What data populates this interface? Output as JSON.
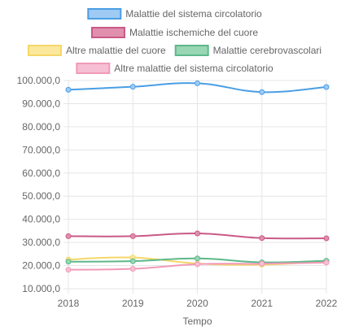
{
  "chart_data": {
    "type": "line",
    "x": [
      "2018",
      "2019",
      "2020",
      "2021",
      "2022"
    ],
    "xlabel": "Tempo",
    "ylabel": "",
    "ylim": [
      10000,
      100000
    ],
    "yticks": [
      "10.000,0",
      "20.000,0",
      "30.000,0",
      "40.000,0",
      "50.000,0",
      "60.000,0",
      "70.000,0",
      "80.000,0",
      "90.000,0",
      "100.000,0"
    ],
    "grid": true,
    "legend_position": "top",
    "series": [
      {
        "name": "Malattie del sistema circolatorio",
        "values": [
          96000,
          97300,
          98800,
          95000,
          97200
        ],
        "color": "#4a9ee4",
        "fill": "#9fcaf4"
      },
      {
        "name": "Malattie ischemiche del cuore",
        "values": [
          32700,
          32700,
          33900,
          31900,
          31800
        ],
        "color": "#c95a86",
        "fill": "#e090ad"
      },
      {
        "name": "Altre malattie del cuore",
        "values": [
          22600,
          23500,
          20900,
          20400,
          21800
        ],
        "color": "#f5d76a",
        "fill": "#fbe89c"
      },
      {
        "name": "Malattie cerebrovascolari",
        "values": [
          21700,
          21900,
          23100,
          21400,
          22100
        ],
        "color": "#5cb88a",
        "fill": "#98d6b4"
      },
      {
        "name": "Altre malattie del sistema circolatorio",
        "values": [
          18200,
          18600,
          20600,
          20800,
          21300
        ],
        "color": "#f09ab8",
        "fill": "#f7bfd3"
      }
    ]
  }
}
